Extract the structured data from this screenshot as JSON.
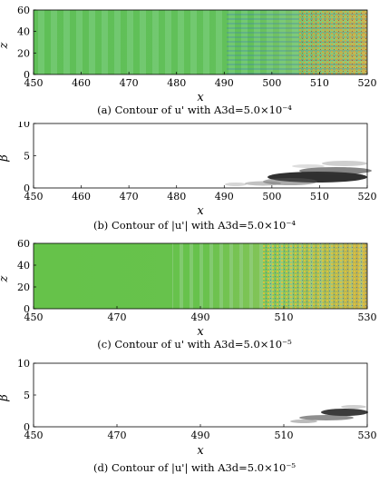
{
  "panels": [
    {
      "id": "a",
      "caption": "(a) Contour of  u' with A3d=5.0×10⁻⁴",
      "xlabel": "x",
      "ylabel": "z",
      "x_ticks": [
        "450",
        "460",
        "470",
        "480",
        "490",
        "500",
        "510",
        "520"
      ],
      "y_ticks": [
        "0",
        "20",
        "40",
        "60"
      ]
    },
    {
      "id": "b",
      "caption": "(b) Contour of  |u'| with A3d=5.0×10⁻⁴",
      "xlabel": "x",
      "ylabel": "β",
      "x_ticks": [
        "450",
        "460",
        "470",
        "480",
        "490",
        "500",
        "510",
        "520"
      ],
      "y_ticks": [
        "0",
        "5",
        "10"
      ]
    },
    {
      "id": "c",
      "caption": "(c) Contour of  u' with A3d=5.0×10⁻⁵",
      "xlabel": "x",
      "ylabel": "z",
      "x_ticks": [
        "450",
        "470",
        "490",
        "510",
        "530"
      ],
      "y_ticks": [
        "0",
        "20",
        "40",
        "60"
      ]
    },
    {
      "id": "d",
      "caption": "(d) Contour of  |u'| with A3d=5.0×10⁻⁵",
      "xlabel": "x",
      "ylabel": "β",
      "x_ticks": [
        "450",
        "470",
        "490",
        "510",
        "530"
      ],
      "y_ticks": [
        "0",
        "5",
        "10"
      ]
    }
  ],
  "colors": {
    "field_green": "#66c24a",
    "contour_dark": "#1a1a1a"
  }
}
